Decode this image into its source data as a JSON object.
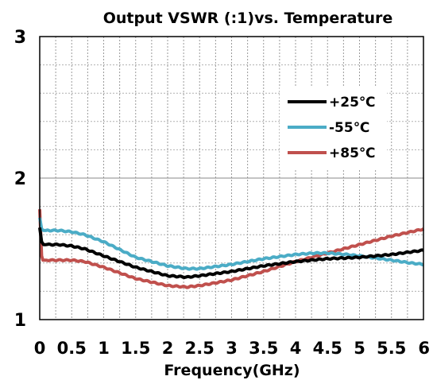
{
  "chart_data": {
    "type": "line",
    "title": "Output VSWR (:1)vs. Temperature",
    "xlabel": "Frequency(GHz)",
    "ylabel": "",
    "xlim": [
      0,
      6
    ],
    "ylim": [
      1,
      3
    ],
    "xticks": [
      0,
      0.5,
      1,
      1.5,
      2,
      2.5,
      3,
      3.5,
      4,
      4.5,
      5,
      5.5,
      6
    ],
    "xtick_labels": [
      "0",
      "0.5",
      "1",
      "1.5",
      "2",
      "2.5",
      "3",
      "3.5",
      "4",
      "4.5",
      "5",
      "5.5",
      "6"
    ],
    "yticks": [
      1,
      2,
      3
    ],
    "ytick_labels": [
      "1",
      "2",
      "3"
    ],
    "grid": true,
    "legend_position": "top-right",
    "series": [
      {
        "name": "+25℃",
        "color": "#000000",
        "x": [
          0.0,
          0.03,
          0.06,
          0.1,
          0.3,
          0.5,
          0.7,
          1.0,
          1.5,
          2.0,
          2.3,
          2.5,
          3.0,
          3.5,
          4.0,
          4.5,
          5.0,
          5.5,
          6.0
        ],
        "y": [
          1.65,
          1.55,
          1.53,
          1.53,
          1.53,
          1.52,
          1.5,
          1.45,
          1.37,
          1.31,
          1.3,
          1.31,
          1.34,
          1.38,
          1.41,
          1.43,
          1.44,
          1.46,
          1.49
        ]
      },
      {
        "name": "-55℃",
        "color": "#4bacc6",
        "x": [
          0.0,
          0.03,
          0.06,
          0.1,
          0.3,
          0.5,
          0.7,
          1.0,
          1.5,
          2.0,
          2.3,
          2.5,
          3.0,
          3.5,
          4.0,
          4.3,
          4.5,
          4.8,
          5.0,
          5.5,
          5.8,
          6.0
        ],
        "y": [
          1.72,
          1.64,
          1.63,
          1.63,
          1.63,
          1.62,
          1.6,
          1.55,
          1.44,
          1.38,
          1.36,
          1.36,
          1.39,
          1.43,
          1.46,
          1.47,
          1.47,
          1.46,
          1.45,
          1.42,
          1.4,
          1.39
        ]
      },
      {
        "name": "+85℃",
        "color": "#c0504d",
        "x": [
          0.0,
          0.03,
          0.05,
          0.1,
          0.3,
          0.5,
          0.7,
          1.0,
          1.5,
          2.0,
          2.3,
          2.5,
          3.0,
          3.5,
          4.0,
          4.5,
          5.0,
          5.5,
          6.0
        ],
        "y": [
          1.78,
          1.45,
          1.42,
          1.42,
          1.42,
          1.42,
          1.41,
          1.37,
          1.29,
          1.24,
          1.23,
          1.24,
          1.28,
          1.34,
          1.41,
          1.47,
          1.53,
          1.59,
          1.64
        ]
      }
    ]
  }
}
